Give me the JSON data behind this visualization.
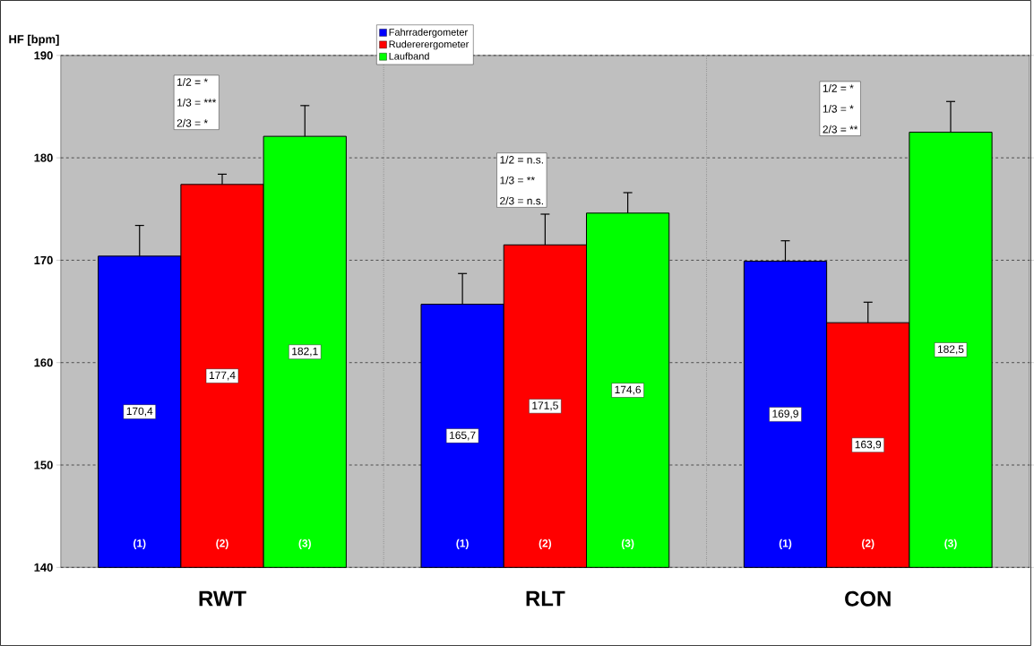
{
  "chart_data": {
    "type": "bar",
    "ylabel": "HF [bpm]",
    "categories": [
      "RWT",
      "RLT",
      "CON"
    ],
    "series": [
      {
        "name": "Fahrradergometer",
        "color": "#0000ff",
        "values": [
          170.4,
          165.7,
          169.9
        ],
        "value_labels": [
          "170,4",
          "165,7",
          "169,9"
        ],
        "errors": [
          [
            170.4,
            173.4
          ],
          [
            165.7,
            168.7
          ],
          [
            169.9,
            171.9
          ]
        ]
      },
      {
        "name": "Rudererergometer",
        "color": "#ff0000",
        "values": [
          177.4,
          171.5,
          163.9
        ],
        "value_labels": [
          "177,4",
          "171,5",
          "163,9"
        ],
        "errors": [
          [
            177.4,
            178.4
          ],
          [
            171.5,
            174.5
          ],
          [
            163.9,
            165.9
          ]
        ]
      },
      {
        "name": "Laufband",
        "color": "#00ff00",
        "values": [
          182.1,
          174.6,
          182.5
        ],
        "value_labels": [
          "182,1",
          "174,6",
          "182,5"
        ],
        "errors": [
          [
            182.1,
            185.1
          ],
          [
            174.6,
            176.6
          ],
          [
            182.5,
            185.5
          ]
        ]
      }
    ],
    "ylim": [
      140,
      190
    ],
    "yticks": [
      140,
      150,
      160,
      170,
      180,
      190
    ],
    "grid": true,
    "legend": "top",
    "annotations": [
      "(1)",
      "(2)",
      "(3)",
      "(1)",
      "(2)",
      "(3)",
      "(1)",
      "(2)",
      "(3)",
      "1/2 = *",
      "1/3 = ***",
      "2/3 = *",
      "1/2 = n.s.",
      "1/3 = **",
      "2/3 = n.s.",
      "1/2 = *",
      "1/3 = *",
      "2/3 = **"
    ]
  }
}
